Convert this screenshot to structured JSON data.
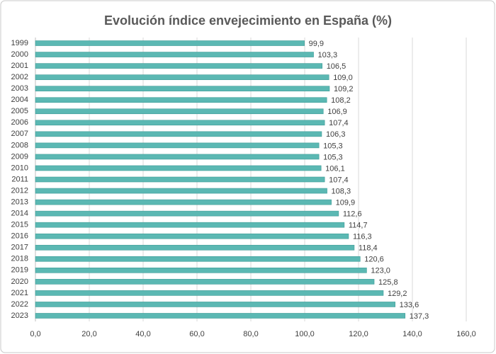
{
  "chart_data": {
    "type": "hbar",
    "title": "Evolución índice envejecimiento en España (%)",
    "categories": [
      "1999",
      "2000",
      "2001",
      "2002",
      "2003",
      "2004",
      "2005",
      "2006",
      "2007",
      "2008",
      "2009",
      "2010",
      "2011",
      "2012",
      "2013",
      "2014",
      "2015",
      "2016",
      "2017",
      "2018",
      "2019",
      "2020",
      "2021",
      "2022",
      "2023"
    ],
    "values": [
      99.9,
      103.3,
      106.5,
      109.0,
      109.2,
      108.2,
      106.9,
      107.4,
      106.3,
      105.3,
      105.3,
      106.1,
      107.4,
      108.3,
      109.9,
      112.6,
      114.7,
      116.3,
      118.4,
      120.6,
      123.0,
      125.8,
      129.2,
      133.6,
      137.3
    ],
    "value_labels": [
      "99,9",
      "103,3",
      "106,5",
      "109,0",
      "109,2",
      "108,2",
      "106,9",
      "107,4",
      "106,3",
      "105,3",
      "105,3",
      "106,1",
      "107,4",
      "108,3",
      "109,9",
      "112,6",
      "114,7",
      "116,3",
      "118,4",
      "120,6",
      "123,0",
      "125,8",
      "129,2",
      "133,6",
      "137,3"
    ],
    "color": "#5bb8b3",
    "xlim": [
      0,
      160
    ],
    "xticks": [
      {
        "value": 0,
        "label": "0,0"
      },
      {
        "value": 20,
        "label": "20,0"
      },
      {
        "value": 40,
        "label": "40,0"
      },
      {
        "value": 60,
        "label": "60,0"
      },
      {
        "value": 80,
        "label": "80,0"
      },
      {
        "value": 100,
        "label": "100,0"
      },
      {
        "value": 120,
        "label": "120,0"
      },
      {
        "value": 140,
        "label": "140,0"
      },
      {
        "value": 160,
        "label": "160,0"
      }
    ],
    "grid": true
  }
}
